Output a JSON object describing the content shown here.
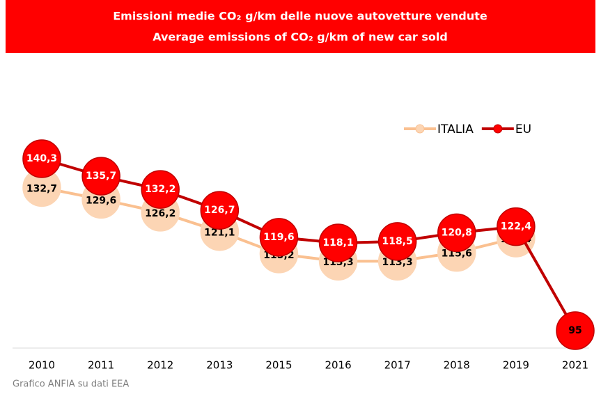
{
  "chart_data": {
    "type": "line",
    "title": [
      "Emissioni medie CO₂ g/km delle nuove autovetture vendute",
      "Average emissions of CO₂ g/km of new car sold"
    ],
    "note": "Grafico ANFIA su dati EEA",
    "legend": "top-right",
    "categories": [
      "2010",
      "2011",
      "2012",
      "2013",
      "2015",
      "2016",
      "2017",
      "2018",
      "2019",
      "2021"
    ],
    "series": [
      {
        "name": "ITALIA",
        "color": "#fac090",
        "marker_color": "#fcd5b4",
        "values": [
          132.7,
          129.6,
          126.2,
          121.1,
          115.2,
          113.3,
          113.3,
          115.6,
          119.4,
          null
        ],
        "value_labels": [
          "132,7",
          "129,6",
          "126,2",
          "121,1",
          "115,2",
          "113,3",
          "113,3",
          "115,6",
          "119,4",
          null
        ]
      },
      {
        "name": "EU",
        "color": "#c00000",
        "marker_color": "#ff0000",
        "values": [
          140.3,
          135.7,
          132.2,
          126.7,
          119.6,
          118.1,
          118.5,
          120.8,
          122.4,
          95
        ],
        "value_labels": [
          "140,3",
          "135,7",
          "132,2",
          "126,7",
          "119,6",
          "118,1",
          "118,5",
          "120,8",
          "122,4",
          "95"
        ]
      }
    ]
  }
}
